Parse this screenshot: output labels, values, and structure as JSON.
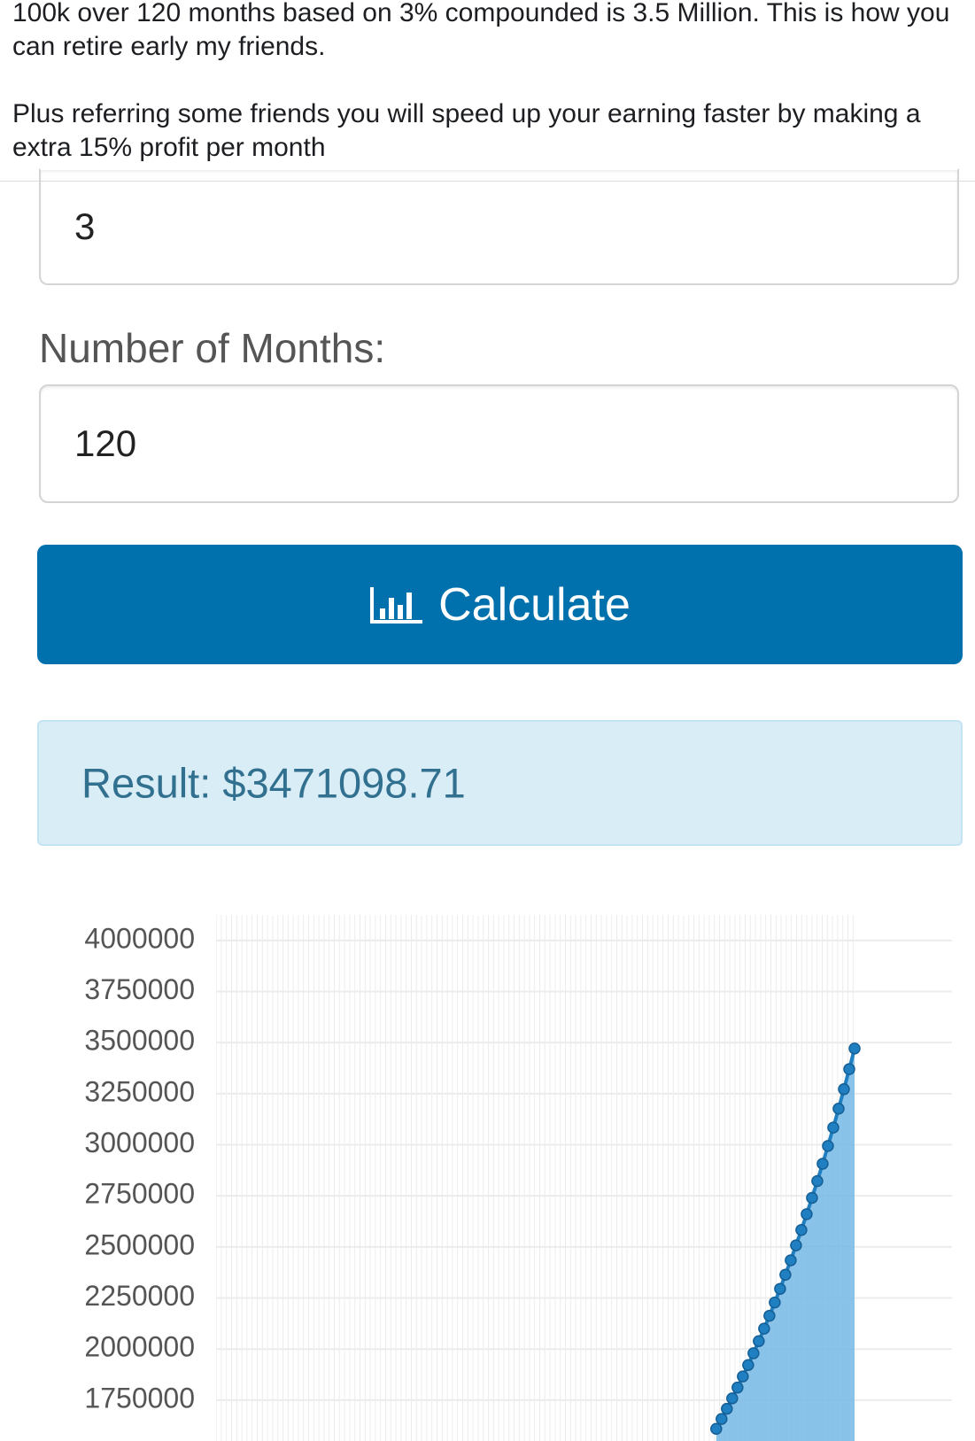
{
  "post_text": [
    "100k over 120 months based on 3% compounded is 3.5 Million. This is how you can retire early my friends.",
    "Plus referring some friends you will speed up your earning faster by making a extra 15% profit per month"
  ],
  "form": {
    "rate_value": "3",
    "months_label": "Number of Months:",
    "months_value": "120",
    "button": "Calculate",
    "result": "Result: $3471098.71"
  },
  "chart_data": {
    "type": "area",
    "x": [
      94,
      95,
      96,
      97,
      98,
      99,
      100,
      101,
      102,
      103,
      104,
      105,
      106,
      107,
      108,
      109,
      110,
      111,
      112,
      113,
      114,
      115,
      116,
      117,
      118,
      119,
      120
    ],
    "values": [
      1609534,
      1657820,
      1707555,
      1758781,
      1811544,
      1865890,
      1921867,
      1979523,
      2038909,
      2100076,
      2163078,
      2227970,
      2294809,
      2363653,
      2434562,
      2507599,
      2582827,
      2660312,
      2740121,
      2822325,
      2906995,
      2994205,
      3084031,
      3176552,
      3271848,
      3370003,
      3471099
    ],
    "color": "#1f7fc0",
    "xlim": [
      0,
      120
    ],
    "ylim": [
      1550000,
      4125000
    ],
    "yticks": [
      1750000,
      2000000,
      2250000,
      2500000,
      2750000,
      3000000,
      3250000,
      3500000,
      3750000,
      4000000
    ],
    "grid": true
  }
}
